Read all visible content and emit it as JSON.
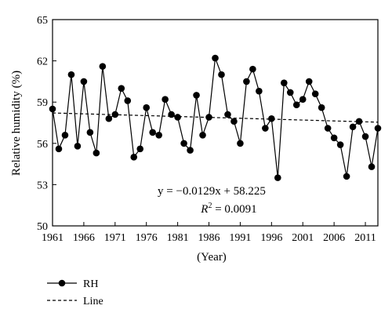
{
  "chart_data": {
    "type": "line",
    "xlabel": "(Year)",
    "ylabel": "Relative humidity (%)",
    "xlim": [
      1961,
      2013
    ],
    "ylim": [
      50,
      65
    ],
    "xticks": [
      1961,
      1966,
      1971,
      1976,
      1981,
      1986,
      1991,
      1996,
      2001,
      2006,
      2011
    ],
    "yticks": [
      50,
      53,
      56,
      59,
      62,
      65
    ],
    "x": [
      1961,
      1962,
      1963,
      1964,
      1965,
      1966,
      1967,
      1968,
      1969,
      1970,
      1971,
      1972,
      1973,
      1974,
      1975,
      1976,
      1977,
      1978,
      1979,
      1980,
      1981,
      1982,
      1983,
      1984,
      1985,
      1986,
      1987,
      1988,
      1989,
      1990,
      1991,
      1992,
      1993,
      1994,
      1995,
      1996,
      1997,
      1998,
      1999,
      2000,
      2001,
      2002,
      2003,
      2004,
      2005,
      2006,
      2007,
      2008,
      2009,
      2010,
      2011,
      2012,
      2013
    ],
    "series": [
      {
        "name": "RH",
        "values": [
          58.5,
          55.6,
          56.6,
          61.0,
          55.8,
          60.5,
          56.8,
          55.3,
          61.6,
          57.8,
          58.1,
          60.0,
          59.1,
          55.0,
          55.6,
          58.6,
          56.8,
          56.6,
          59.2,
          58.1,
          57.9,
          56.0,
          55.5,
          59.5,
          56.6,
          57.9,
          62.2,
          61.0,
          58.1,
          57.6,
          56.0,
          60.5,
          61.4,
          59.8,
          57.1,
          57.8,
          53.5,
          60.4,
          59.7,
          58.8,
          59.2,
          60.5,
          59.6,
          58.6,
          57.1,
          56.4,
          55.9,
          53.6,
          57.2,
          57.6,
          56.5,
          54.3,
          57.1
        ]
      },
      {
        "name": "Line",
        "slope": -0.0129,
        "intercept": 58.225
      }
    ],
    "annotations": {
      "equation": "y = −0.0129x + 58.225",
      "r2_label": "R",
      "r2_value": " = 0.0091"
    },
    "legend": {
      "position": "bottom-left",
      "entries": [
        "RH",
        "Line"
      ]
    }
  }
}
